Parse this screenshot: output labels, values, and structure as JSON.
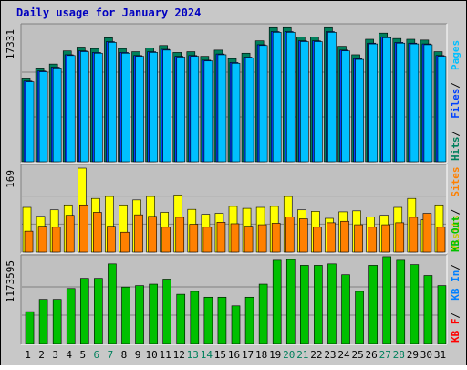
{
  "chart_data": {
    "type": "bar",
    "title": "Daily usage for January 2024",
    "x": [
      "1",
      "2",
      "3",
      "4",
      "5",
      "6",
      "7",
      "8",
      "9",
      "10",
      "11",
      "12",
      "13",
      "14",
      "15",
      "16",
      "17",
      "18",
      "19",
      "20",
      "21",
      "22",
      "23",
      "24",
      "25",
      "26",
      "27",
      "28",
      "29",
      "30",
      "31"
    ],
    "weekend_days": [
      "6",
      "7",
      "13",
      "14",
      "20",
      "21",
      "27",
      "28"
    ],
    "panels": [
      {
        "id": "hits",
        "max_label": "17331",
        "ylim": [
          0,
          17331
        ],
        "right_labels": [
          {
            "text": "Hits",
            "color": "#00805c"
          },
          {
            "text": "Files",
            "color": "#0040ff"
          },
          {
            "text": "Pages",
            "color": "#00c0ff"
          }
        ],
        "series": [
          {
            "name": "Hits",
            "color": "#00805c",
            "values": [
              10800,
              12100,
              12600,
              14300,
              14800,
              14600,
              16000,
              14600,
              14200,
              14700,
              15000,
              14100,
              14200,
              13600,
              14400,
              13300,
              14000,
              15600,
              17300,
              17300,
              16100,
              16100,
              17300,
              14900,
              13800,
              15800,
              16600,
              15900,
              15800,
              15700,
              14200
            ]
          },
          {
            "name": "Files",
            "color": "#0040ff",
            "values": [
              10400,
              11700,
              12200,
              13800,
              14300,
              14100,
              15500,
              14100,
              13700,
              14200,
              14500,
              13600,
              13700,
              13100,
              13900,
              12800,
              13500,
              15100,
              16800,
              16800,
              15600,
              15600,
              16800,
              14400,
              13300,
              15300,
              16100,
              15400,
              15300,
              15200,
              13700
            ]
          },
          {
            "name": "Pages",
            "color": "#00c0ff",
            "values": [
              10300,
              11600,
              12100,
              13700,
              14200,
              14000,
              15400,
              14000,
              13600,
              14100,
              14400,
              13500,
              13600,
              13000,
              13800,
              12700,
              13400,
              15000,
              16700,
              16700,
              15500,
              15500,
              16700,
              14300,
              13200,
              15200,
              16000,
              15300,
              15200,
              15100,
              13600
            ]
          }
        ]
      },
      {
        "id": "visits",
        "max_label": "169",
        "ylim": [
          0,
          169
        ],
        "right_labels": [
          {
            "text": "Visits",
            "color": "#c8c800"
          },
          {
            "text": "Sites",
            "color": "#ff8000"
          }
        ],
        "series": [
          {
            "name": "Visits",
            "color": "#ffff00",
            "values": [
              90,
              72,
              85,
              95,
              169,
              108,
              112,
              95,
              105,
              112,
              80,
              115,
              86,
              76,
              78,
              92,
              88,
              90,
              92,
              112,
              85,
              82,
              68,
              81,
              83,
              71,
              74,
              90,
              108,
              65,
              95
            ]
          },
          {
            "name": "Sites",
            "color": "#ff8000",
            "values": [
              42,
              52,
              50,
              74,
              95,
              80,
              52,
              40,
              75,
              72,
              50,
              70,
              56,
              50,
              60,
              57,
              52,
              55,
              58,
              71,
              67,
              50,
              59,
              62,
              55,
              50,
              55,
              59,
              70,
              78,
              50
            ]
          }
        ]
      },
      {
        "id": "kbytes",
        "max_label": "1173595",
        "ylim": [
          0,
          1173595
        ],
        "right_labels": [
          {
            "text": "KB F",
            "color": "#ff0000"
          },
          {
            "text": "KB In",
            "color": "#0080ff"
          },
          {
            "text": "KB Out",
            "color": "#00c000"
          }
        ],
        "series": [
          {
            "name": "KB F",
            "color": "#ff0000",
            "values": [
              0,
              0,
              0,
              0,
              0,
              0,
              0,
              0,
              0,
              0,
              0,
              0,
              0,
              0,
              0,
              0,
              0,
              0,
              0,
              0,
              0,
              0,
              0,
              0,
              0,
              0,
              0,
              0,
              0,
              0,
              0
            ]
          },
          {
            "name": "KB In",
            "color": "#0080ff",
            "values": [
              0,
              0,
              0,
              0,
              0,
              0,
              0,
              0,
              0,
              0,
              0,
              0,
              0,
              0,
              0,
              0,
              0,
              0,
              0,
              0,
              0,
              0,
              0,
              0,
              0,
              0,
              0,
              0,
              0,
              0,
              0
            ]
          },
          {
            "name": "KB Out",
            "color": "#00c000",
            "values": [
              440000,
              610000,
              610000,
              760000,
              900000,
              900000,
              1100000,
              780000,
              800000,
              820000,
              890000,
              680000,
              720000,
              640000,
              640000,
              520000,
              640000,
              820000,
              1150000,
              1160000,
              1080000,
              1080000,
              1100000,
              950000,
              720000,
              1080000,
              1200000,
              1150000,
              1090000,
              940000,
              800000
            ]
          }
        ]
      }
    ]
  }
}
